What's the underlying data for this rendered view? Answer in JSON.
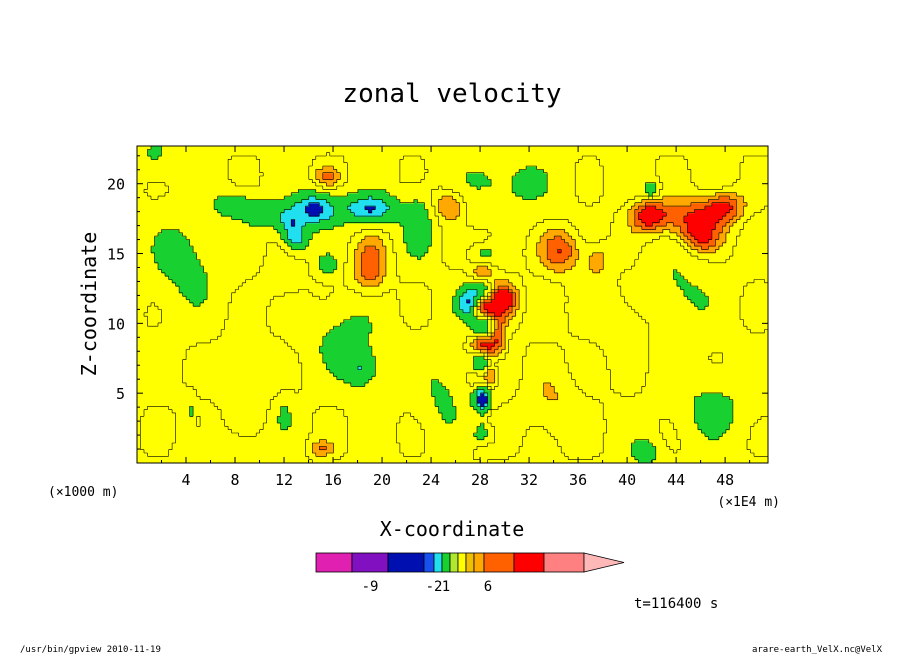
{
  "chart_data": {
    "type": "heatmap",
    "title": "zonal velocity",
    "xlabel": "X-coordinate",
    "ylabel": "Z-coordinate",
    "x_unit_left": "(×1000 m)",
    "x_unit_right": "(×1E4 m)",
    "xlim": [
      0,
      51.5
    ],
    "ylim": [
      0,
      22.7
    ],
    "x_ticks": [
      4,
      8,
      12,
      16,
      20,
      24,
      28,
      32,
      36,
      40,
      44,
      48
    ],
    "x_tick_labels": [
      "4",
      "8",
      "12",
      "16",
      "20",
      "24",
      "28",
      "32",
      "36",
      "40",
      "44",
      "48"
    ],
    "y_ticks": [
      5,
      10,
      15,
      20
    ],
    "y_tick_labels": [
      "5",
      "10",
      "15",
      "20"
    ],
    "time_label": "t=116400 s",
    "colorbar": {
      "colors": [
        "#e020b0",
        "#8010c0",
        "#0010b0",
        "#1850f0",
        "#20e0f0",
        "#18d030",
        "#b0e830",
        "#ffff00",
        "#f0c000",
        "#ffa800",
        "#ff6000",
        "#ff0000",
        "#ff8080",
        "#ffb8b8"
      ],
      "labels": [
        "-9",
        "-2",
        "1",
        "6"
      ]
    },
    "levels": [
      {
        "v": -4.5,
        "color": "#1850f0"
      },
      {
        "v": -3,
        "color": "#20e0f0"
      },
      {
        "v": -1,
        "color": "#18d030"
      },
      {
        "v": 0.5,
        "color": "#ffff00"
      },
      {
        "v": 1.5,
        "color": "#f0c000"
      },
      {
        "v": 2.5,
        "color": "#ffa800"
      },
      {
        "v": 3.5,
        "color": "#ff6000"
      }
    ],
    "features": [
      {
        "x": 14.5,
        "z": 18.2,
        "amp": -5.5,
        "sx": 1.8,
        "sz": 1.2
      },
      {
        "x": 19.0,
        "z": 18.2,
        "amp": -5.0,
        "sx": 2.3,
        "sz": 1.1
      },
      {
        "x": 10.5,
        "z": 17.8,
        "amp": -3.0,
        "sx": 1.5,
        "sz": 1.0
      },
      {
        "x": 12.5,
        "z": 17.2,
        "amp": -3.5,
        "sx": 1.0,
        "sz": 1.0
      },
      {
        "x": 13.0,
        "z": 16.0,
        "amp": -4.0,
        "sx": 1.0,
        "sz": 0.9
      },
      {
        "x": 23.0,
        "z": 17.0,
        "amp": -2.8,
        "sx": 1.2,
        "sz": 2.2
      },
      {
        "x": 15.5,
        "z": 14.2,
        "amp": -2.6,
        "sx": 0.8,
        "sz": 0.7
      },
      {
        "x": 8.0,
        "z": 18.5,
        "amp": -2.4,
        "sx": 1.8,
        "sz": 1.0
      },
      {
        "x": 27.0,
        "z": 11.5,
        "amp": -4.8,
        "sx": 0.9,
        "sz": 1.1
      },
      {
        "x": 28.2,
        "z": 4.5,
        "amp": -4.0,
        "sx": 0.6,
        "sz": 2.0
      },
      {
        "x": 18.3,
        "z": 6.7,
        "amp": -3.0,
        "sx": 1.5,
        "sz": 1.3
      },
      {
        "x": 41.5,
        "z": 0.8,
        "amp": -2.5,
        "sx": 1.2,
        "sz": 1.0
      },
      {
        "x": 42.0,
        "z": 19.6,
        "amp": -3.0,
        "sx": 0.6,
        "sz": 0.6
      },
      {
        "x": 4.4,
        "z": 3.0,
        "amp": -2.8,
        "sx": 0.4,
        "sz": 1.5
      },
      {
        "x": 12.0,
        "z": 3.5,
        "amp": -1.5,
        "sx": 0.8,
        "sz": 1.5
      },
      {
        "x": 19.0,
        "z": 14.0,
        "amp": 2.8,
        "sx": 1.4,
        "sz": 2.0
      },
      {
        "x": 25.5,
        "z": 18.5,
        "amp": 2.6,
        "sx": 1.4,
        "sz": 1.2
      },
      {
        "x": 29.8,
        "z": 11.7,
        "amp": 4.2,
        "sx": 1.2,
        "sz": 1.2
      },
      {
        "x": 29.5,
        "z": 9.0,
        "amp": 2.8,
        "sx": 0.6,
        "sz": 1.5
      },
      {
        "x": 34.6,
        "z": 15.2,
        "amp": 3.0,
        "sx": 1.6,
        "sz": 1.5
      },
      {
        "x": 41.8,
        "z": 17.7,
        "amp": 4.0,
        "sx": 1.5,
        "sz": 1.1
      },
      {
        "x": 45.5,
        "z": 17.5,
        "amp": 3.5,
        "sx": 2.5,
        "sz": 1.4
      },
      {
        "x": 48.0,
        "z": 18.4,
        "amp": 3.0,
        "sx": 1.5,
        "sz": 1.0
      },
      {
        "x": 15.5,
        "z": 20.5,
        "amp": 2.2,
        "sx": 1.0,
        "sz": 0.7
      },
      {
        "x": 37.5,
        "z": 14.5,
        "amp": 1.8,
        "sx": 1.0,
        "sz": 1.2
      },
      {
        "x": 28.8,
        "z": 7.0,
        "amp": 2.5,
        "sx": 0.5,
        "sz": 1.5
      },
      {
        "x": 4.5,
        "z": 2.8,
        "amp": 2.2,
        "sx": 0.6,
        "sz": 1.0
      },
      {
        "x": 15.0,
        "z": 1.0,
        "amp": 2.0,
        "sx": 1.0,
        "sz": 0.6
      },
      {
        "x": 46.0,
        "z": 16.0,
        "amp": 2.5,
        "sx": 1.5,
        "sz": 1.0
      },
      {
        "x": 12.0,
        "z": 13.0,
        "amp": 0.8,
        "sx": 2.0,
        "sz": 2.0
      },
      {
        "x": 9.0,
        "z": 6.5,
        "amp": 1.2,
        "sx": 2.5,
        "sz": 3.0
      },
      {
        "x": 34.0,
        "z": 4.0,
        "amp": 1.2,
        "sx": 2.5,
        "sz": 2.5
      },
      {
        "x": 40.0,
        "z": 10.5,
        "amp": 1.2,
        "sx": 3.0,
        "sz": 2.5
      },
      {
        "x": 30.0,
        "z": 20.0,
        "amp": -1.8,
        "sx": 4.0,
        "sz": 2.5
      },
      {
        "x": 44.0,
        "z": 12.0,
        "amp": -1.8,
        "sx": 3.0,
        "sz": 3.0
      },
      {
        "x": 4.0,
        "z": 14.5,
        "amp": -2.0,
        "sx": 3.0,
        "sz": 3.5
      },
      {
        "x": 17.0,
        "z": 9.0,
        "amp": -1.9,
        "sx": 3.0,
        "sz": 2.5
      },
      {
        "x": 47.0,
        "z": 4.0,
        "amp": -1.8,
        "sx": 3.0,
        "sz": 2.5
      },
      {
        "x": 8.0,
        "z": 1.0,
        "amp": -1.5,
        "sx": 3.0,
        "sz": 1.0
      },
      {
        "x": 25.0,
        "z": 5.0,
        "amp": -1.6,
        "sx": 2.0,
        "sz": 3.0
      },
      {
        "x": 1.5,
        "z": 22.0,
        "amp": -1.6,
        "sx": 2.0,
        "sz": 1.5
      }
    ]
  },
  "footer": {
    "left": "/usr/bin/gpview   2010-11-19",
    "right": "arare-earth_VelX.nc@VelX"
  }
}
